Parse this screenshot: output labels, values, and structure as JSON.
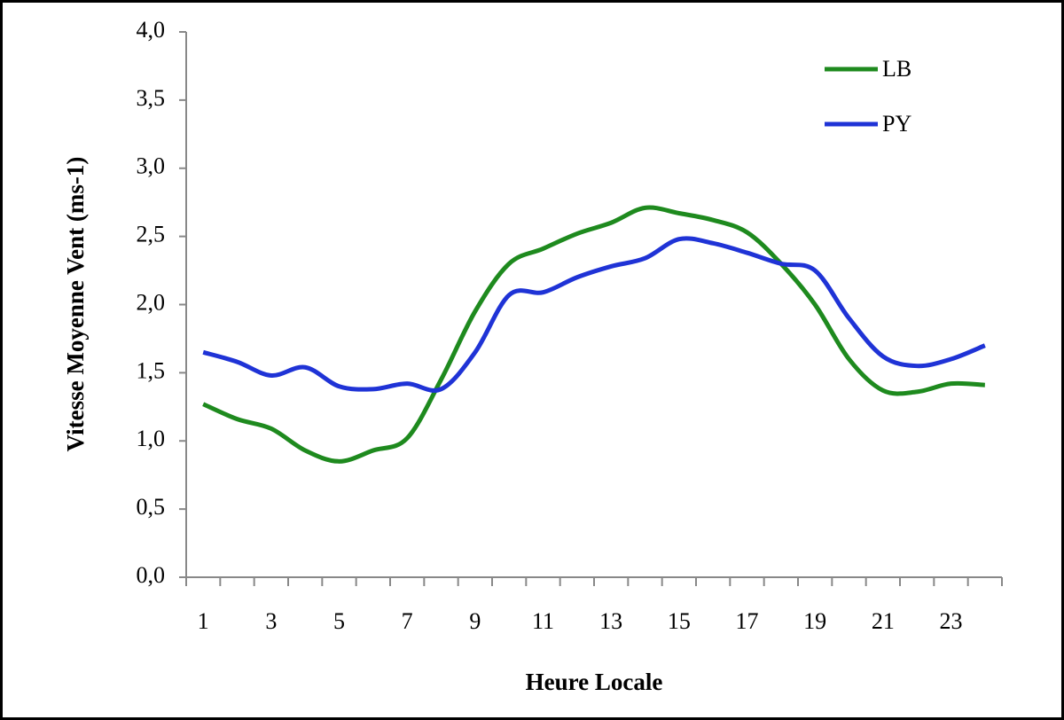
{
  "chart_data": {
    "type": "line",
    "y_label": "Vitesse Moyenne Vent (ms-1)",
    "x_label": "Heure Locale",
    "categories": [
      1,
      null,
      3,
      null,
      5,
      null,
      7,
      null,
      9,
      null,
      11,
      null,
      13,
      null,
      15,
      null,
      17,
      null,
      19,
      null,
      21,
      null,
      23,
      null
    ],
    "series": [
      {
        "name": "LB",
        "color": "#1e8a1e",
        "values": [
          1.27,
          1.16,
          1.09,
          0.93,
          0.85,
          0.93,
          1.02,
          1.45,
          1.95,
          2.3,
          2.41,
          2.52,
          2.6,
          2.71,
          2.67,
          2.62,
          2.53,
          2.3,
          2.0,
          1.6,
          1.37,
          1.36,
          1.42,
          1.41
        ]
      },
      {
        "name": "PY",
        "color": "#1f33d6",
        "values": [
          1.65,
          1.58,
          1.48,
          1.54,
          1.4,
          1.38,
          1.42,
          1.38,
          1.65,
          2.07,
          2.09,
          2.2,
          2.28,
          2.34,
          2.48,
          2.45,
          2.38,
          2.3,
          2.25,
          1.9,
          1.62,
          1.55,
          1.6,
          1.7
        ]
      }
    ],
    "ylim": [
      0,
      4
    ],
    "yticks": [
      {
        "value": 0,
        "label": "0,0"
      },
      {
        "value": 0.5,
        "label": "0,5"
      },
      {
        "value": 1,
        "label": "1,0"
      },
      {
        "value": 1.5,
        "label": "1,5"
      },
      {
        "value": 2,
        "label": "2,0"
      },
      {
        "value": 2.5,
        "label": "2,5"
      },
      {
        "value": 3,
        "label": "3,0"
      },
      {
        "value": 3.5,
        "label": "3,5"
      },
      {
        "value": 4,
        "label": "4,0"
      }
    ],
    "grid": false,
    "legend": "top-right"
  }
}
